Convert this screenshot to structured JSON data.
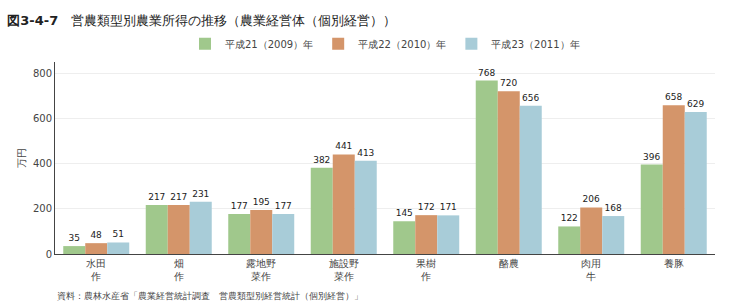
{
  "chart_data": {
    "type": "bar",
    "title": "図3-4-7",
    "subtitle": "営農類型別農業所得の推移（農業経営体（個別経営））",
    "ylabel": "万円",
    "annotations": [
      "資料：農林水産省「農業経営統計調査　営農類型別経営統計（個別経営）」"
    ],
    "categories": [
      "水田\n作",
      "畑\n作",
      "露地野\n菜作",
      "施設野\n菜作",
      "果樹\n作",
      "酪農",
      "肉用\n牛",
      "養豚"
    ],
    "series": [
      {
        "name": "平成21（2009）年",
        "color": "#a0c88c",
        "values": [
          35,
          217,
          177,
          382,
          145,
          768,
          122,
          396
        ]
      },
      {
        "name": "平成22（2010）年",
        "color": "#d4956a",
        "values": [
          48,
          217,
          195,
          441,
          172,
          720,
          206,
          658
        ]
      },
      {
        "name": "平成23（2011）年",
        "color": "#a8ccd8",
        "values": [
          51,
          231,
          177,
          413,
          171,
          656,
          168,
          629
        ]
      }
    ],
    "ylim": [
      0,
      850
    ],
    "yticks": [
      0,
      200,
      400,
      600,
      800
    ],
    "grid": true,
    "legend": "top",
    "data_labels": true
  }
}
